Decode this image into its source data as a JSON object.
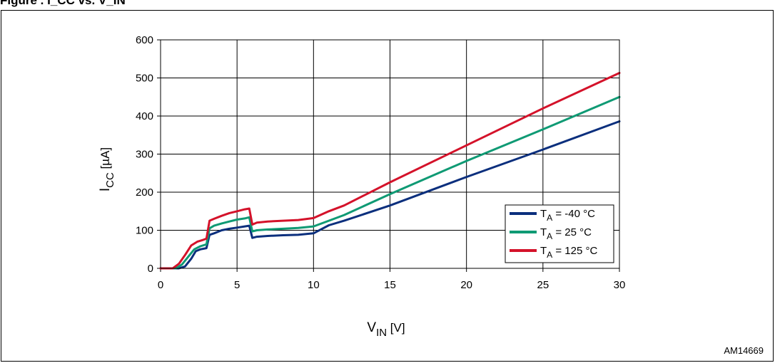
{
  "header": {
    "caption": "Figure . I_CC vs. V_IN"
  },
  "figure_code": "AM14669",
  "colors": {
    "series_m40": "#0b2f7d",
    "series_25": "#0f9a74",
    "series_125": "#d4122a",
    "grid": "#000000"
  },
  "chart_data": {
    "type": "line",
    "xlabel": {
      "main": "V",
      "sub": "IN",
      "unit": " [V]"
    },
    "ylabel": {
      "main": "I",
      "sub": "CC",
      "unit": " [µA]"
    },
    "xlim": [
      0,
      30
    ],
    "ylim": [
      0,
      600
    ],
    "xticks": [
      0,
      5,
      10,
      15,
      20,
      25,
      30
    ],
    "yticks": [
      0,
      100,
      200,
      300,
      400,
      500,
      600
    ],
    "grid": true,
    "legend_position": "bottom-right",
    "series": [
      {
        "label": {
          "main": "T",
          "sub": "A",
          "rest": " = -40 °C"
        },
        "color": "#0b2f7d",
        "points": [
          [
            0,
            0
          ],
          [
            1.2,
            0
          ],
          [
            1.6,
            5
          ],
          [
            2.0,
            25
          ],
          [
            2.3,
            45
          ],
          [
            2.6,
            50
          ],
          [
            3.0,
            53
          ],
          [
            3.2,
            88
          ],
          [
            3.5,
            92
          ],
          [
            4.0,
            100
          ],
          [
            4.5,
            104
          ],
          [
            5.0,
            107
          ],
          [
            5.5,
            110
          ],
          [
            5.8,
            112
          ],
          [
            6.0,
            80
          ],
          [
            6.3,
            83
          ],
          [
            7,
            85
          ],
          [
            8,
            87
          ],
          [
            9,
            88
          ],
          [
            10,
            92
          ],
          [
            11,
            113
          ],
          [
            12,
            125
          ],
          [
            15,
            165
          ],
          [
            20,
            240
          ],
          [
            25,
            312
          ],
          [
            30,
            386
          ]
        ]
      },
      {
        "label": {
          "main": "T",
          "sub": "A",
          "rest": " = 25 °C"
        },
        "color": "#0f9a74",
        "points": [
          [
            0,
            0
          ],
          [
            1.0,
            0
          ],
          [
            1.4,
            10
          ],
          [
            1.8,
            30
          ],
          [
            2.2,
            50
          ],
          [
            2.6,
            58
          ],
          [
            3.0,
            63
          ],
          [
            3.2,
            105
          ],
          [
            3.5,
            112
          ],
          [
            4.0,
            118
          ],
          [
            4.5,
            123
          ],
          [
            5.0,
            128
          ],
          [
            5.5,
            131
          ],
          [
            5.8,
            134
          ],
          [
            6.0,
            97
          ],
          [
            6.3,
            100
          ],
          [
            7,
            102
          ],
          [
            8,
            104
          ],
          [
            9,
            106
          ],
          [
            10,
            110
          ],
          [
            11,
            125
          ],
          [
            12,
            140
          ],
          [
            15,
            195
          ],
          [
            20,
            282
          ],
          [
            25,
            365
          ],
          [
            30,
            450
          ]
        ]
      },
      {
        "label": {
          "main": "T",
          "sub": "A",
          "rest": " = 125 °C"
        },
        "color": "#d4122a",
        "points": [
          [
            0,
            0
          ],
          [
            0.8,
            0
          ],
          [
            1.2,
            12
          ],
          [
            1.6,
            35
          ],
          [
            2.0,
            60
          ],
          [
            2.4,
            70
          ],
          [
            2.8,
            75
          ],
          [
            3.0,
            78
          ],
          [
            3.2,
            125
          ],
          [
            3.5,
            130
          ],
          [
            4.0,
            138
          ],
          [
            4.5,
            145
          ],
          [
            5.0,
            150
          ],
          [
            5.5,
            155
          ],
          [
            5.8,
            157
          ],
          [
            6.0,
            115
          ],
          [
            6.3,
            120
          ],
          [
            7,
            123
          ],
          [
            8,
            125
          ],
          [
            9,
            127
          ],
          [
            10,
            132
          ],
          [
            11,
            150
          ],
          [
            12,
            165
          ],
          [
            15,
            226
          ],
          [
            20,
            323
          ],
          [
            25,
            420
          ],
          [
            30,
            513
          ]
        ]
      }
    ]
  }
}
